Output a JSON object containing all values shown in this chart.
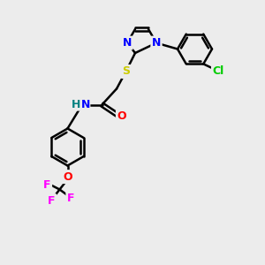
{
  "bg_color": "#ececec",
  "bond_color": "#000000",
  "bond_lw": 1.8,
  "atom_colors": {
    "N": "#0000ff",
    "S": "#cccc00",
    "O_amide": "#ff0000",
    "O_ether": "#ff0000",
    "Cl": "#00cc00",
    "F": "#ff00ff",
    "H": "#008080",
    "C": "#000000"
  },
  "font_size_atom": 9,
  "font_size_small": 8
}
